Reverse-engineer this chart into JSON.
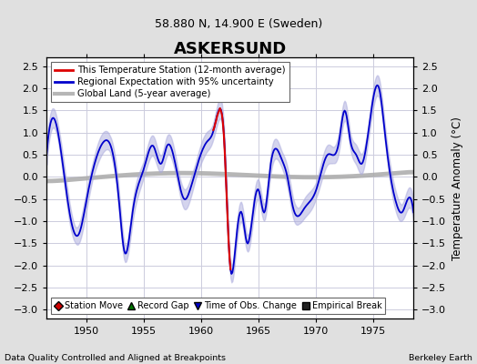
{
  "title": "ASKERSUND",
  "subtitle": "58.880 N, 14.900 E (Sweden)",
  "ylabel": "Temperature Anomaly (°C)",
  "xlabel_bottom_left": "Data Quality Controlled and Aligned at Breakpoints",
  "xlabel_bottom_right": "Berkeley Earth",
  "ylim": [
    -3.2,
    2.7
  ],
  "xlim": [
    1946.5,
    1978.5
  ],
  "yticks": [
    -3,
    -2.5,
    -2,
    -1.5,
    -1,
    -0.5,
    0,
    0.5,
    1,
    1.5,
    2,
    2.5
  ],
  "xticks": [
    1950,
    1955,
    1960,
    1965,
    1970,
    1975
  ],
  "bg_color": "#e0e0e0",
  "plot_bg_color": "#ffffff",
  "grid_color": "#ccccdd",
  "station_color": "#dd0000",
  "regional_color": "#0000cc",
  "regional_fill_color": "#aaaadd",
  "global_land_color": "#aaaaaa",
  "legend_marker_colors": {
    "station_move": "#cc0000",
    "record_gap": "#007700",
    "time_obs": "#0000cc",
    "empirical": "#222222"
  }
}
